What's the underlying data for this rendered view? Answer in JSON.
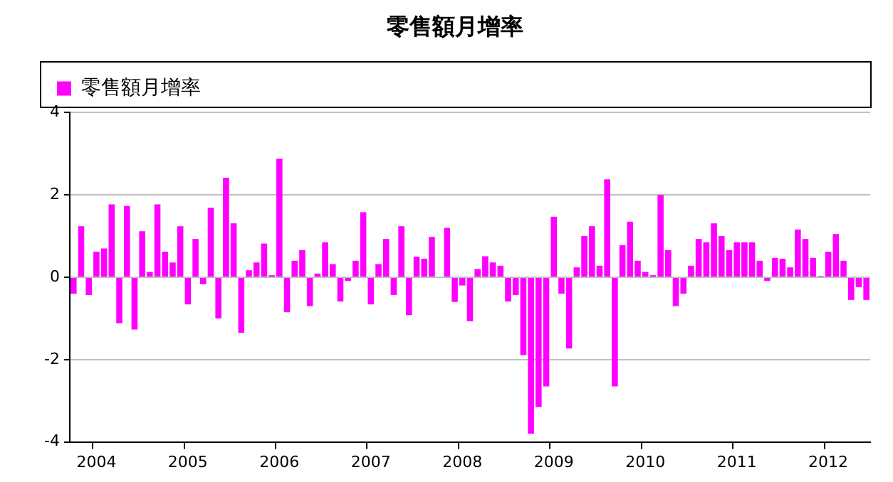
{
  "chart_data": {
    "type": "bar",
    "title": "零售額月增率",
    "categories": [
      null,
      null,
      null,
      "2004",
      null,
      null,
      null,
      null,
      null,
      null,
      null,
      null,
      null,
      null,
      null,
      "2005",
      null,
      null,
      null,
      null,
      null,
      null,
      null,
      null,
      null,
      null,
      null,
      "2006",
      null,
      null,
      null,
      null,
      null,
      null,
      null,
      null,
      null,
      null,
      null,
      "2007",
      null,
      null,
      null,
      null,
      null,
      null,
      null,
      null,
      null,
      null,
      null,
      "2008",
      null,
      null,
      null,
      null,
      null,
      null,
      null,
      null,
      null,
      null,
      null,
      "2009",
      null,
      null,
      null,
      null,
      null,
      null,
      null,
      null,
      null,
      null,
      null,
      "2010",
      null,
      null,
      null,
      null,
      null,
      null,
      null,
      null,
      null,
      null,
      null,
      "2011",
      null,
      null,
      null,
      null,
      null,
      null,
      null,
      null,
      null,
      null,
      null,
      "2012",
      null,
      null,
      null,
      null,
      null
    ],
    "series": [
      {
        "name": "零售額月增率",
        "color": "#ff00ff",
        "values": [
          -0.4,
          1.24,
          -0.43,
          0.62,
          0.7,
          1.77,
          -1.12,
          1.73,
          -1.27,
          1.12,
          0.13,
          1.77,
          0.62,
          0.36,
          1.24,
          -0.66,
          0.93,
          -0.17,
          1.69,
          -1.0,
          2.42,
          1.31,
          -1.35,
          0.17,
          0.36,
          0.82,
          0.05,
          2.88,
          -0.85,
          0.4,
          0.66,
          -0.7,
          0.09,
          0.85,
          0.32,
          -0.59,
          -0.09,
          0.4,
          1.58,
          -0.66,
          0.32,
          0.93,
          -0.43,
          1.24,
          -0.92,
          0.5,
          0.45,
          0.98,
          0,
          1.2,
          -0.6,
          -0.2,
          -1.07,
          0.2,
          0.51,
          0.36,
          0.28,
          -0.59,
          -0.43,
          -1.89,
          -3.8,
          -3.15,
          -2.65,
          1.47,
          -0.4,
          -1.73,
          0.24,
          1.0,
          1.24,
          0.28,
          2.38,
          -2.65,
          0.78,
          1.35,
          0.4,
          0.13,
          0.05,
          2.0,
          0.66,
          -0.7,
          -0.4,
          0.28,
          0.93,
          0.85,
          1.31,
          1.0,
          0.66,
          0.85,
          0.85,
          0.85,
          0.4,
          -0.09,
          0.47,
          0.45,
          0.24,
          1.16,
          0.93,
          0.47,
          0.03,
          0.62,
          1.05,
          0.4,
          -0.55,
          -0.24,
          -0.55
        ]
      }
    ],
    "ylim": [
      -4,
      4
    ],
    "yticks": [
      -4,
      -2,
      0,
      2,
      4
    ],
    "grid": "y",
    "legend": "top left"
  }
}
